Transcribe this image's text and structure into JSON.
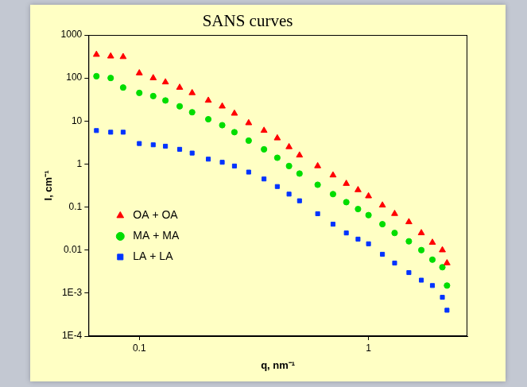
{
  "chart_data": {
    "type": "scatter",
    "title": "SANS curves",
    "x_label": "q, nm⁻¹",
    "y_label": "I, cm⁻¹",
    "log": true,
    "grid": false,
    "legend": "left",
    "xlim": [
      0.06,
      2.7
    ],
    "xticks": [
      0.1,
      1
    ],
    "ylim": [
      0.0001,
      1000
    ],
    "yticks": [
      {
        "value": 0.0001,
        "label": "1E-4"
      },
      {
        "value": 0.001,
        "label": "1E-3"
      },
      0.01,
      0.1,
      1,
      10,
      100,
      1000
    ],
    "x": [
      0.065,
      0.075,
      0.085,
      0.1,
      0.115,
      0.13,
      0.15,
      0.17,
      0.2,
      0.23,
      0.26,
      0.3,
      0.35,
      0.4,
      0.45,
      0.5,
      0.6,
      0.7,
      0.8,
      0.9,
      1.0,
      1.15,
      1.3,
      1.5,
      1.7,
      1.9,
      2.1,
      2.2
    ],
    "series": [
      {
        "name": "OA + OA",
        "color": "#ff0000",
        "marker": "triangle",
        "values": [
          350,
          320,
          310,
          130,
          100,
          80,
          60,
          45,
          30,
          22,
          15,
          9,
          6,
          4,
          2.5,
          1.6,
          0.9,
          0.55,
          0.35,
          0.25,
          0.18,
          0.11,
          0.07,
          0.045,
          0.025,
          0.015,
          0.01,
          0.005
        ]
      },
      {
        "name": "MA + MA",
        "color": "#00dd00",
        "marker": "circle",
        "values": [
          110,
          100,
          60,
          45,
          38,
          30,
          22,
          16,
          11,
          8,
          5.5,
          3.5,
          2.2,
          1.4,
          0.9,
          0.6,
          0.33,
          0.2,
          0.13,
          0.09,
          0.065,
          0.04,
          0.025,
          0.016,
          0.01,
          0.006,
          0.004,
          0.0015
        ]
      },
      {
        "name": "LA + LA",
        "color": "#0033ff",
        "marker": "square",
        "values": [
          6,
          5.5,
          5.5,
          3,
          2.8,
          2.6,
          2.2,
          1.8,
          1.3,
          1.1,
          0.9,
          0.65,
          0.45,
          0.3,
          0.2,
          0.14,
          0.07,
          0.04,
          0.025,
          0.018,
          0.014,
          0.008,
          0.005,
          0.003,
          0.002,
          0.0015,
          0.0008,
          0.0004
        ]
      }
    ]
  }
}
